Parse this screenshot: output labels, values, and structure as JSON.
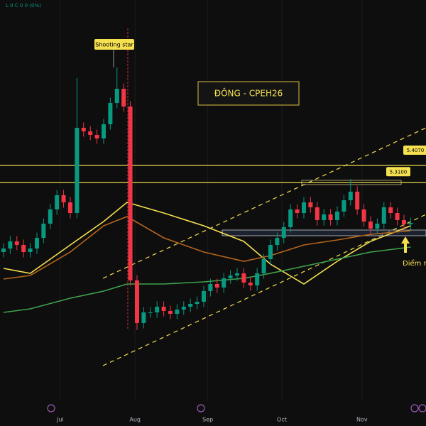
{
  "chart_data": {
    "type": "candlestick",
    "title": "ĐÔNG - CPEH26",
    "ohlc_header": "L 0 C 0 0 (0%)",
    "annotations": [
      "Shooting star",
      "Điểm m"
    ],
    "up_color": "#089981",
    "down_color": "#f23645",
    "ylim": [
      3.939,
      6.339
    ],
    "xlim": [
      -0.53,
      63.3
    ],
    "xticks": [
      {
        "value": 8.5,
        "label": "Jul"
      },
      {
        "value": 19.7,
        "label": "Aug"
      },
      {
        "value": 30.6,
        "label": "Sep"
      },
      {
        "value": 41.7,
        "label": "Oct"
      },
      {
        "value": 53.7,
        "label": "Nov"
      }
    ],
    "grid": true,
    "levels": [
      {
        "value": 5.407,
        "label": "5.4070"
      },
      {
        "value": 5.31,
        "label": "5.3100"
      }
    ],
    "open": [
      4.919,
      4.939,
      4.979,
      4.959,
      4.919,
      4.939,
      4.999,
      5.079,
      5.159,
      5.239,
      5.199,
      5.139,
      5.619,
      5.599,
      5.579,
      5.559,
      5.639,
      5.759,
      5.839,
      5.739,
      4.759,
      4.519,
      4.579,
      4.579,
      4.611,
      4.587,
      4.571,
      4.595,
      4.611,
      4.627,
      4.639,
      4.699,
      4.739,
      4.719,
      4.771,
      4.787,
      4.799,
      4.747,
      4.731,
      4.799,
      4.879,
      4.959,
      4.999,
      5.059,
      5.159,
      5.139,
      5.199,
      5.171,
      5.099,
      5.131,
      5.099,
      5.147,
      5.211,
      5.259,
      5.159,
      5.091,
      5.051,
      5.079,
      5.171,
      5.139,
      5.099,
      5.075
    ],
    "high": [
      4.969,
      5.009,
      5.009,
      4.989,
      4.969,
      5.029,
      5.109,
      5.189,
      5.269,
      5.269,
      5.229,
      5.899,
      5.649,
      5.629,
      5.609,
      5.669,
      5.789,
      5.959,
      5.869,
      5.769,
      4.789,
      4.609,
      4.609,
      4.641,
      4.641,
      4.617,
      4.625,
      4.641,
      4.657,
      4.669,
      4.729,
      4.769,
      4.769,
      4.801,
      4.817,
      4.829,
      4.829,
      4.777,
      4.829,
      4.909,
      4.989,
      5.029,
      5.089,
      5.189,
      5.189,
      5.229,
      5.229,
      5.201,
      5.161,
      5.161,
      5.177,
      5.241,
      5.331,
      5.289,
      5.189,
      5.121,
      5.109,
      5.201,
      5.201,
      5.169,
      5.129,
      5.113
    ],
    "low": [
      4.889,
      4.909,
      4.929,
      4.889,
      4.889,
      4.909,
      4.969,
      5.049,
      5.129,
      5.169,
      5.109,
      5.109,
      5.569,
      5.549,
      5.529,
      5.529,
      5.609,
      5.729,
      5.709,
      4.729,
      4.479,
      4.489,
      4.549,
      4.549,
      4.557,
      4.541,
      4.541,
      4.565,
      4.581,
      4.597,
      4.609,
      4.669,
      4.689,
      4.689,
      4.741,
      4.757,
      4.717,
      4.701,
      4.701,
      4.769,
      4.849,
      4.929,
      4.969,
      5.029,
      5.109,
      5.109,
      5.141,
      5.069,
      5.069,
      5.069,
      5.069,
      5.117,
      5.181,
      5.129,
      5.061,
      5.021,
      5.021,
      5.049,
      5.109,
      5.069,
      5.045,
      5.045
    ],
    "close": [
      4.939,
      4.979,
      4.959,
      4.919,
      4.939,
      4.999,
      5.079,
      5.159,
      5.239,
      5.199,
      5.139,
      5.619,
      5.599,
      5.579,
      5.559,
      5.639,
      5.759,
      5.839,
      5.739,
      4.759,
      4.519,
      4.579,
      4.579,
      4.611,
      4.587,
      4.571,
      4.595,
      4.611,
      4.627,
      4.639,
      4.699,
      4.739,
      4.719,
      4.771,
      4.787,
      4.799,
      4.747,
      4.731,
      4.799,
      4.879,
      4.959,
      4.999,
      5.059,
      5.159,
      5.139,
      5.199,
      5.171,
      5.099,
      5.131,
      5.099,
      5.147,
      5.211,
      5.259,
      5.159,
      5.091,
      5.051,
      5.079,
      5.171,
      5.139,
      5.099,
      5.075,
      5.083
    ],
    "series": [
      {
        "color": "#f5e050",
        "x": [
          0,
          4,
          10,
          15,
          18.5,
          24,
          30,
          36,
          40,
          45,
          50,
          55,
          61
        ],
        "values": [
          4.827,
          4.799,
          4.959,
          5.091,
          5.199,
          5.139,
          5.067,
          4.979,
          4.851,
          4.739,
          4.867,
          4.979,
          5.067
        ]
      },
      {
        "color": "#b5651d",
        "x": [
          0,
          4,
          10,
          15,
          18.5,
          24,
          30,
          36,
          40,
          45,
          50,
          55,
          61
        ],
        "values": [
          4.767,
          4.787,
          4.919,
          5.067,
          5.119,
          4.999,
          4.919,
          4.867,
          4.899,
          4.959,
          4.987,
          5.019,
          5.039
        ]
      },
      {
        "color": "#3fa34d",
        "x": [
          0,
          4,
          10,
          15,
          18.5,
          24,
          30,
          36,
          40,
          45,
          50,
          55,
          61
        ],
        "values": [
          4.579,
          4.599,
          4.659,
          4.699,
          4.739,
          4.739,
          4.751,
          4.771,
          4.799,
          4.839,
          4.879,
          4.919,
          4.947
        ]
      }
    ]
  }
}
